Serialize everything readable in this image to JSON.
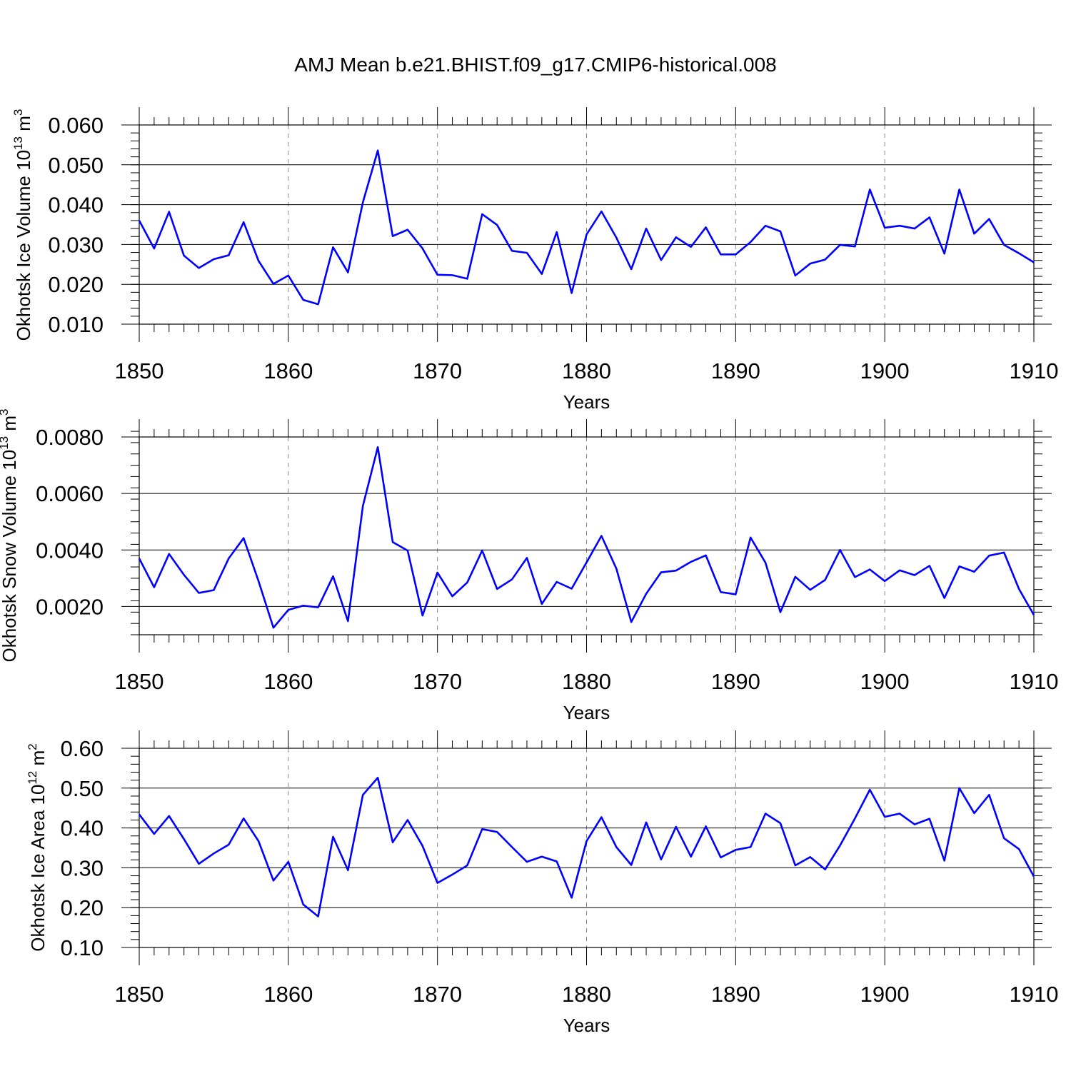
{
  "title": "AMJ Mean b.e21.BHIST.f09_g17.CMIP6-historical.008",
  "colors": {
    "line": "#0000ff",
    "grid": "#888888",
    "axis": "#000000"
  },
  "chart_data": [
    {
      "type": "line",
      "title": "AMJ Mean b.e21.BHIST.f09_g17.CMIP6-historical.008",
      "xlabel": "Years",
      "ylabel_parts": [
        "Okhotsk Ice Volume 10",
        "13",
        " m",
        "3"
      ],
      "xlim": [
        1850,
        1910
      ],
      "ylim": [
        0.01,
        0.06
      ],
      "x_ticks": [
        1850,
        1860,
        1870,
        1880,
        1890,
        1900,
        1910
      ],
      "x_tick_labels": [
        "1850",
        "1860",
        "1870",
        "1880",
        "1890",
        "1900",
        "1910"
      ],
      "y_ticks": [
        0.01,
        0.02,
        0.03,
        0.04,
        0.05,
        0.06
      ],
      "y_tick_labels": [
        "0.010",
        "0.020",
        "0.030",
        "0.040",
        "0.050",
        "0.060"
      ],
      "y_minor_step": 0.002,
      "grid": "vertical dashed",
      "series": [
        {
          "name": "Ice Volume",
          "x_start": 1850,
          "values": [
            0.036,
            0.029,
            0.0382,
            0.0272,
            0.0241,
            0.0263,
            0.0273,
            0.0356,
            0.0259,
            0.0201,
            0.0222,
            0.0161,
            0.015,
            0.0293,
            0.023,
            0.0406,
            0.0536,
            0.0321,
            0.0337,
            0.029,
            0.0224,
            0.0223,
            0.0214,
            0.0376,
            0.0349,
            0.0284,
            0.0279,
            0.0226,
            0.0331,
            0.0178,
            0.0325,
            0.0383,
            0.0317,
            0.0238,
            0.034,
            0.0261,
            0.0318,
            0.0294,
            0.0343,
            0.0275,
            0.0275,
            0.0306,
            0.0347,
            0.0333,
            0.0222,
            0.0252,
            0.0262,
            0.0299,
            0.0295,
            0.0438,
            0.0342,
            0.0347,
            0.034,
            0.0368,
            0.0277,
            0.0438,
            0.0327,
            0.0364,
            0.0299,
            0.0278,
            0.0255
          ]
        }
      ]
    },
    {
      "type": "line",
      "xlabel": "Years",
      "ylabel_parts": [
        "Okhotsk Snow Volume 10",
        "13",
        " m",
        "3"
      ],
      "xlim": [
        1850,
        1910
      ],
      "ylim": [
        0.001,
        0.008
      ],
      "x_ticks": [
        1850,
        1860,
        1870,
        1880,
        1890,
        1900,
        1910
      ],
      "x_tick_labels": [
        "1850",
        "1860",
        "1870",
        "1880",
        "1890",
        "1900",
        "1910"
      ],
      "y_ticks": [
        0.002,
        0.004,
        0.006,
        0.008
      ],
      "y_tick_labels": [
        "0.0020",
        "0.0040",
        "0.0060",
        "0.0080"
      ],
      "y_minor_step": 0.0004,
      "grid": "vertical dashed",
      "series": [
        {
          "name": "Snow Volume",
          "x_start": 1850,
          "values": [
            0.0037,
            0.00268,
            0.00386,
            0.00312,
            0.00248,
            0.00258,
            0.0037,
            0.00442,
            0.0029,
            0.00125,
            0.00188,
            0.00203,
            0.00197,
            0.00307,
            0.00148,
            0.00556,
            0.00764,
            0.00428,
            0.00398,
            0.00168,
            0.0032,
            0.00236,
            0.00285,
            0.00398,
            0.00262,
            0.00296,
            0.00372,
            0.00209,
            0.00287,
            0.00263,
            0.00356,
            0.0045,
            0.00334,
            0.00145,
            0.00245,
            0.00321,
            0.00327,
            0.00358,
            0.00381,
            0.00251,
            0.00243,
            0.00444,
            0.00355,
            0.0018,
            0.00305,
            0.00259,
            0.00294,
            0.004,
            0.00304,
            0.00331,
            0.0029,
            0.00328,
            0.00311,
            0.00344,
            0.0023,
            0.00342,
            0.00323,
            0.0038,
            0.00391,
            0.00262,
            0.0017
          ]
        }
      ]
    },
    {
      "type": "line",
      "xlabel": "Years",
      "ylabel_parts": [
        "Okhotsk Ice Area 10",
        "12",
        " m",
        "2"
      ],
      "xlim": [
        1850,
        1910
      ],
      "ylim": [
        0.1,
        0.6
      ],
      "x_ticks": [
        1850,
        1860,
        1870,
        1880,
        1890,
        1900,
        1910
      ],
      "x_tick_labels": [
        "1850",
        "1860",
        "1870",
        "1880",
        "1890",
        "1900",
        "1910"
      ],
      "y_ticks": [
        0.1,
        0.2,
        0.3,
        0.4,
        0.5,
        0.6
      ],
      "y_tick_labels": [
        "0.10",
        "0.20",
        "0.30",
        "0.40",
        "0.50",
        "0.60"
      ],
      "y_minor_step": 0.02,
      "grid": "vertical dashed",
      "series": [
        {
          "name": "Ice Area",
          "x_start": 1850,
          "values": [
            0.434,
            0.385,
            0.43,
            0.372,
            0.31,
            0.336,
            0.358,
            0.424,
            0.367,
            0.268,
            0.315,
            0.208,
            0.178,
            0.378,
            0.294,
            0.483,
            0.526,
            0.364,
            0.42,
            0.355,
            0.262,
            0.283,
            0.306,
            0.397,
            0.39,
            0.352,
            0.315,
            0.328,
            0.316,
            0.225,
            0.367,
            0.427,
            0.352,
            0.307,
            0.414,
            0.321,
            0.403,
            0.328,
            0.404,
            0.326,
            0.345,
            0.352,
            0.436,
            0.412,
            0.306,
            0.327,
            0.296,
            0.356,
            0.424,
            0.496,
            0.428,
            0.436,
            0.409,
            0.423,
            0.318,
            0.5,
            0.437,
            0.483,
            0.374,
            0.347,
            0.278
          ]
        }
      ]
    }
  ]
}
